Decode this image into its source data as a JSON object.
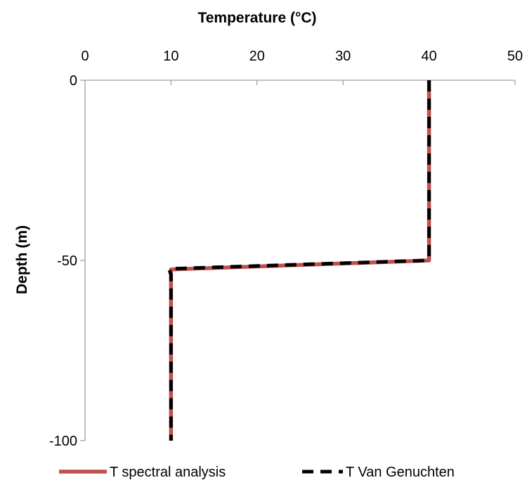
{
  "chart_data": {
    "type": "line",
    "xlabel": "Temperature (°C)",
    "ylabel": "Depth (m)",
    "xlim": [
      0,
      50
    ],
    "ylim": [
      -100,
      0
    ],
    "x_ticks": [
      "0",
      "10",
      "20",
      "30",
      "40",
      "50"
    ],
    "y_ticks": [
      "0",
      "-50",
      "-100"
    ],
    "x_axis_position": "top",
    "grid": false,
    "legend_position": "bottom",
    "series": [
      {
        "name": "T spectral analysis",
        "color": "#c0504d",
        "style": "solid",
        "x": [
          40,
          40,
          40,
          10,
          10,
          10
        ],
        "y": [
          0,
          -49.5,
          -50,
          -52.5,
          -53,
          -100
        ]
      },
      {
        "name": "T Van Genuchten",
        "color": "#000000",
        "style": "dashed",
        "x": [
          40,
          40,
          39.6,
          10,
          9.8,
          10,
          10
        ],
        "y": [
          0,
          -49,
          -50,
          -52.3,
          -52.6,
          -54,
          -100
        ]
      }
    ]
  }
}
